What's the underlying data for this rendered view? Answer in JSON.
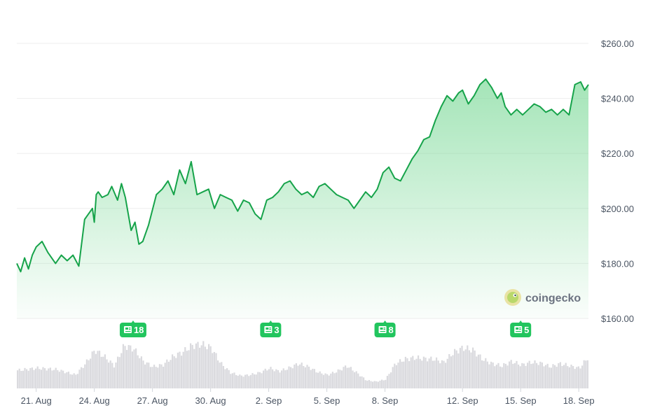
{
  "brand": {
    "name": "coingecko",
    "logo_icon": "gecko-icon"
  },
  "colors": {
    "line": "#16a34a",
    "area_top": "#86dca0",
    "badge": "#22c55e",
    "volume": "#d4d4d8",
    "grid": "#eeeeee",
    "text": "#4b5563"
  },
  "chart_data": {
    "type": "area",
    "currency": "USD",
    "ylim": [
      160,
      260
    ],
    "yticks": [
      "$160.00",
      "$180.00",
      "$200.00",
      "$220.00",
      "$240.00",
      "$260.00"
    ],
    "ytick_values": [
      160,
      180,
      200,
      220,
      240,
      260
    ],
    "xticks": [
      "21. Aug",
      "24. Aug",
      "27. Aug",
      "30. Aug",
      "2. Sep",
      "5. Sep",
      "8. Sep",
      "12. Sep",
      "15. Sep",
      "18. Sep"
    ],
    "xtick_days": [
      1,
      4,
      7,
      10,
      13,
      16,
      19,
      23,
      26,
      29
    ],
    "x_domain": [
      0.0,
      29.5
    ],
    "series": [
      {
        "x": [
          0.0,
          0.2,
          0.4,
          0.6,
          0.8,
          1.0,
          1.3,
          1.6,
          2.0,
          2.3,
          2.6,
          2.9,
          3.2,
          3.5,
          3.9,
          4.0,
          4.1,
          4.2,
          4.4,
          4.7,
          4.9,
          5.2,
          5.4,
          5.6,
          5.9,
          6.1,
          6.3,
          6.5,
          6.8,
          7.2,
          7.5,
          7.8,
          8.1,
          8.4,
          8.7,
          9.0,
          9.3,
          9.6,
          9.9,
          10.2,
          10.5,
          10.8,
          11.1,
          11.4,
          11.7,
          12.0,
          12.3,
          12.6,
          12.9,
          13.2,
          13.5,
          13.8,
          14.1,
          14.4,
          14.7,
          15.0,
          15.3,
          15.6,
          15.9,
          16.2,
          16.5,
          16.8,
          17.1,
          17.4,
          17.7,
          18.0,
          18.3,
          18.6,
          18.9,
          19.2,
          19.5,
          19.8,
          20.1,
          20.4,
          20.7,
          21.0,
          21.3,
          21.6,
          21.9,
          22.2,
          22.5,
          22.8,
          23.0,
          23.3,
          23.6,
          23.9,
          24.2,
          24.5,
          24.8,
          25.0,
          25.2,
          25.5,
          25.8,
          26.1,
          26.4,
          26.7,
          27.0,
          27.3,
          27.6,
          27.9,
          28.2,
          28.5,
          28.8,
          29.1,
          29.3,
          29.5
        ],
        "y": [
          180,
          177,
          182,
          178,
          183,
          186,
          188,
          184,
          180,
          183,
          181,
          183,
          179,
          196,
          200,
          195,
          205,
          206,
          204,
          205,
          208,
          203,
          209,
          204,
          192,
          195,
          187,
          188,
          194,
          205,
          207,
          210,
          205,
          214,
          209,
          217,
          205,
          206,
          207,
          200,
          205,
          204,
          203,
          199,
          203,
          202,
          198,
          196,
          203,
          204,
          206,
          209,
          210,
          207,
          205,
          206,
          204,
          208,
          209,
          207,
          205,
          204,
          203,
          200,
          203,
          206,
          204,
          207,
          213,
          215,
          211,
          210,
          214,
          218,
          221,
          225,
          226,
          232,
          237,
          241,
          239,
          242,
          243,
          238,
          241,
          245,
          247,
          244,
          240,
          242,
          237,
          234,
          236,
          234,
          236,
          238,
          237,
          235,
          236,
          234,
          236,
          234,
          245,
          246,
          243,
          245
        ]
      }
    ],
    "volume": {
      "x": [
        0.0,
        1.0,
        2.0,
        3.0,
        3.5,
        4.0,
        4.5,
        5.0,
        5.5,
        6.0,
        6.5,
        7.0,
        7.5,
        8.0,
        8.5,
        9.0,
        9.5,
        10.0,
        10.5,
        11.0,
        11.5,
        12.0,
        12.5,
        13.0,
        13.5,
        14.0,
        14.5,
        15.0,
        15.5,
        16.0,
        16.5,
        17.0,
        17.5,
        18.0,
        18.5,
        19.0,
        19.5,
        20.0,
        20.5,
        21.0,
        21.5,
        22.0,
        22.5,
        23.0,
        23.5,
        24.0,
        24.5,
        25.0,
        25.5,
        26.0,
        26.5,
        27.0,
        27.5,
        28.0,
        28.5,
        29.0,
        29.5
      ],
      "level": [
        0.4,
        0.45,
        0.42,
        0.3,
        0.55,
        0.85,
        0.7,
        0.5,
        0.95,
        0.88,
        0.6,
        0.48,
        0.52,
        0.7,
        0.8,
        0.95,
        0.98,
        0.9,
        0.55,
        0.35,
        0.28,
        0.3,
        0.35,
        0.45,
        0.38,
        0.45,
        0.55,
        0.48,
        0.36,
        0.3,
        0.38,
        0.5,
        0.35,
        0.18,
        0.15,
        0.2,
        0.55,
        0.65,
        0.68,
        0.66,
        0.65,
        0.58,
        0.8,
        0.9,
        0.85,
        0.65,
        0.55,
        0.5,
        0.6,
        0.52,
        0.58,
        0.56,
        0.48,
        0.55,
        0.5,
        0.45,
        0.72
      ]
    },
    "news_markers": [
      {
        "day": 6,
        "count": "18"
      },
      {
        "day": 13.1,
        "count": "3"
      },
      {
        "day": 19,
        "count": "8"
      },
      {
        "day": 26,
        "count": "5"
      }
    ]
  }
}
